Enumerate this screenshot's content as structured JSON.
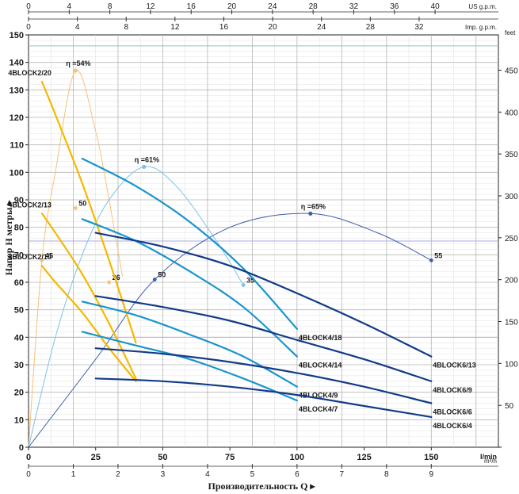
{
  "chart_data": {
    "type": "line",
    "xlabel": "Производительность Q ▸",
    "ylabel": "Напор Н метры ▸",
    "x_unit": "l/min",
    "x_unit2": "m³/h",
    "top_unit_us": "US g.p.m.",
    "top_unit_imp": "Imp. g.p.m.",
    "right_unit": "feet",
    "xlim": [
      0,
      175
    ],
    "ylim": [
      0,
      150
    ],
    "x_ticks": [
      0,
      25,
      50,
      75,
      100,
      125,
      150
    ],
    "y_ticks": [
      0,
      10,
      20,
      30,
      40,
      50,
      60,
      70,
      80,
      90,
      100,
      110,
      120,
      130,
      140,
      150
    ],
    "m3h_ticks": [
      0,
      1,
      2,
      3,
      4,
      5,
      6,
      7,
      8,
      9
    ],
    "us_gpm_ticks": [
      0,
      4,
      8,
      12,
      16,
      20,
      24,
      28,
      32,
      36,
      40
    ],
    "imp_gpm_ticks": [
      0,
      4,
      8,
      12,
      16,
      20,
      24,
      28,
      32
    ],
    "feet_ticks": [
      0,
      50,
      100,
      150,
      200,
      250,
      300,
      350,
      400,
      450
    ],
    "grid": true,
    "series": [
      {
        "name": "4BLOCK2/20",
        "color": "#f5b800",
        "x": [
          5,
          10,
          20,
          30,
          40
        ],
        "y": [
          133,
          121,
          96,
          68,
          38
        ]
      },
      {
        "name": "4BLOCK2/13",
        "color": "#f5b800",
        "x": [
          5,
          10,
          20,
          30,
          40
        ],
        "y": [
          85,
          78,
          63,
          45,
          25
        ]
      },
      {
        "name": "4BLOCK2/10",
        "color": "#f5b800",
        "x": [
          5,
          10,
          20,
          30,
          40
        ],
        "y": [
          66,
          60,
          49,
          36,
          24
        ]
      },
      {
        "name": "4BLOCK4/18",
        "color": "#1a95cc",
        "x": [
          20,
          40,
          60,
          80,
          100
        ],
        "y": [
          105,
          95,
          82,
          65,
          43
        ]
      },
      {
        "name": "4BLOCK4/14",
        "color": "#1a95cc",
        "x": [
          20,
          40,
          60,
          80,
          100
        ],
        "y": [
          83,
          75,
          64,
          51,
          33
        ]
      },
      {
        "name": "4BLOCK4/9",
        "color": "#1a95cc",
        "x": [
          20,
          40,
          60,
          80,
          100
        ],
        "y": [
          53,
          48,
          41,
          33,
          22
        ]
      },
      {
        "name": "4BLOCK4/7",
        "color": "#1a95cc",
        "x": [
          20,
          40,
          60,
          80,
          100
        ],
        "y": [
          42,
          37,
          32,
          25,
          17
        ]
      },
      {
        "name": "4BLOCK6/13",
        "color": "#123b86",
        "x": [
          25,
          50,
          75,
          100,
          125,
          150
        ],
        "y": [
          78,
          73,
          66,
          56,
          45,
          33
        ]
      },
      {
        "name": "4BLOCK6/9",
        "color": "#123b86",
        "x": [
          25,
          50,
          75,
          100,
          125,
          150
        ],
        "y": [
          55,
          51,
          46,
          39,
          32,
          24
        ]
      },
      {
        "name": "4BLOCK6/6",
        "color": "#123b86",
        "x": [
          25,
          50,
          75,
          100,
          125,
          150
        ],
        "y": [
          36,
          34,
          31,
          27,
          22,
          16
        ]
      },
      {
        "name": "4BLOCK6/4",
        "color": "#123b86",
        "x": [
          25,
          50,
          75,
          100,
          125,
          150
        ],
        "y": [
          25,
          24,
          22,
          19,
          15,
          11
        ]
      }
    ],
    "efficiency_curves": [
      {
        "label": "η =54%",
        "color": "#f7c27a",
        "x": [
          0,
          5,
          10,
          17.5,
          25,
          30,
          35
        ],
        "y": [
          0,
          68,
          100,
          137,
          115,
          90,
          62
        ],
        "peak": [
          17.5,
          137
        ],
        "markers": [
          [
            5,
            68,
            "45"
          ],
          [
            17.5,
            87,
            "50"
          ],
          [
            30,
            60,
            "26"
          ]
        ]
      },
      {
        "label": "η =61%",
        "color": "#7cc3e6",
        "x": [
          0,
          10,
          20,
          30,
          43,
          55,
          70,
          80
        ],
        "y": [
          0,
          40,
          70,
          90,
          102,
          95,
          75,
          59
        ],
        "peak": [
          43,
          102
        ],
        "markers": [
          [
            80,
            59,
            "35"
          ]
        ]
      },
      {
        "label": "η =65%",
        "color": "#3f5fa8",
        "x": [
          0,
          25,
          47,
          75,
          105,
          130,
          150
        ],
        "y": [
          0,
          32,
          61,
          80,
          85,
          78,
          68
        ],
        "peak": [
          105,
          85
        ],
        "markers": [
          [
            47,
            61,
            "50"
          ],
          [
            150,
            68,
            "55"
          ]
        ]
      }
    ]
  }
}
